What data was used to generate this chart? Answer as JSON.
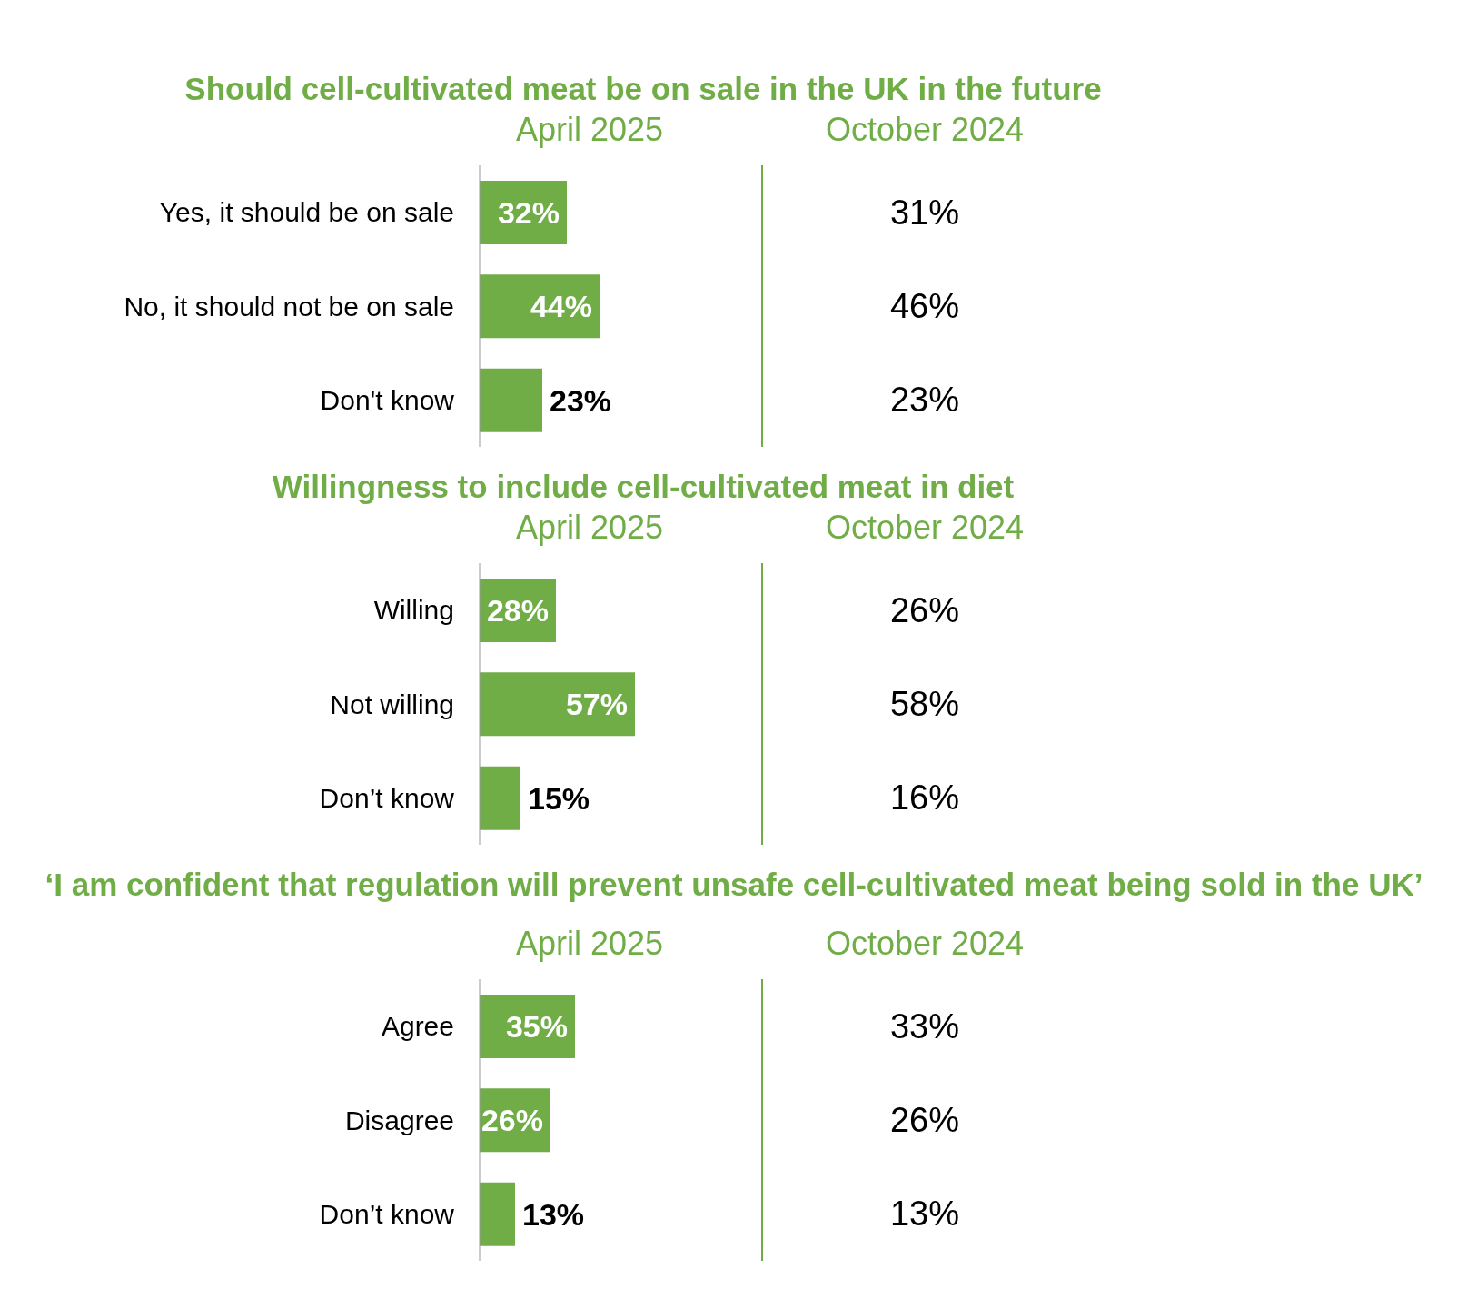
{
  "chart_data": [
    {
      "type": "bar",
      "orientation": "horizontal",
      "title": "Should cell-cultivated meat be on sale in the UK in the future",
      "subtitle": "April 2025",
      "categories": [
        "Yes, it should be on sale",
        "No, it should not be on sale",
        "Don't know"
      ],
      "tick_labels": "y",
      "color": "#70ad47",
      "values": [
        32,
        44,
        23
      ],
      "value_labels": [
        "32%",
        "44%",
        "23%"
      ]
    },
    {
      "type": "other",
      "title": "October 2024",
      "categories": [
        null,
        null,
        null
      ],
      "values": [
        31,
        46,
        23
      ],
      "value_labels": [
        "31%",
        "46%",
        "23%"
      ]
    },
    {
      "type": "bar",
      "orientation": "horizontal",
      "title": "Willingness to include cell-cultivated meat in diet",
      "subtitle": "April 2025",
      "categories": [
        "Willing",
        "Not willing",
        "Don’t know"
      ],
      "tick_labels": "y",
      "color": "#70ad47",
      "values": [
        28,
        57,
        15
      ],
      "value_labels": [
        "28%",
        "57%",
        "15%"
      ]
    },
    {
      "type": "other",
      "title": "October 2024",
      "categories": [
        null,
        null,
        null
      ],
      "values": [
        26,
        58,
        16
      ],
      "value_labels": [
        "26%",
        "58%",
        "16%"
      ]
    },
    {
      "type": "bar",
      "orientation": "horizontal",
      "title": "‘I am confident that regulation will prevent unsafe cell-cultivated meat being sold in the UK’",
      "subtitle": "April 2025",
      "categories": [
        "Agree",
        "Disagree",
        "Don’t know"
      ],
      "tick_labels": "y",
      "color": "#70ad47",
      "values": [
        35,
        26,
        13
      ],
      "value_labels": [
        "35%",
        "26%",
        "13%"
      ]
    },
    {
      "type": "other",
      "title": "October 2024",
      "categories": [
        null,
        null,
        null
      ],
      "values": [
        33,
        26,
        13
      ],
      "value_labels": [
        "33%",
        "26%",
        "13%"
      ]
    }
  ]
}
